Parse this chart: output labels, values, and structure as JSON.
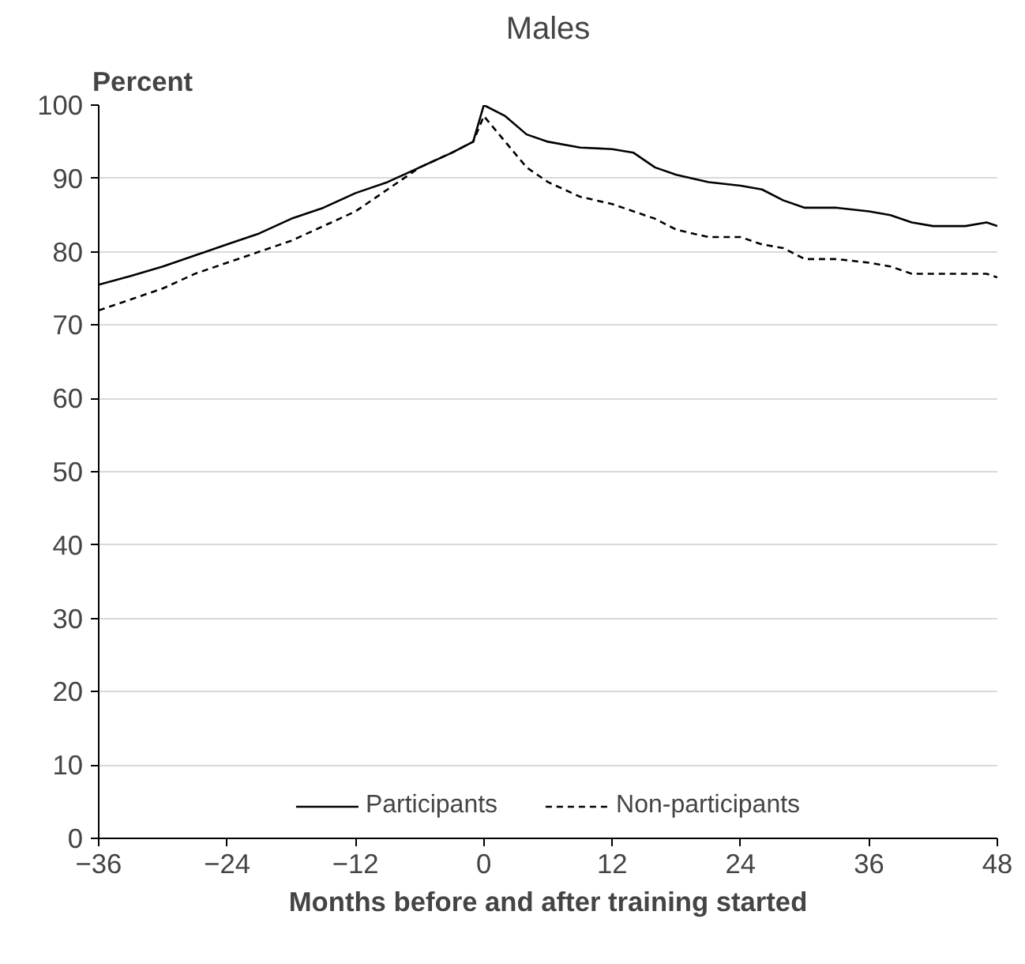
{
  "chart_data": {
    "type": "line",
    "title": "Males",
    "ylabel": "Percent",
    "xlabel": "Months before and after training started",
    "xlim": [
      -36,
      48
    ],
    "xticks": [
      -36,
      -24,
      -12,
      0,
      12,
      24,
      36,
      48
    ],
    "ylim": [
      0,
      100
    ],
    "yticks": [
      0,
      10,
      20,
      30,
      40,
      50,
      60,
      70,
      80,
      90,
      100
    ],
    "grid": "y",
    "legend": "bottom",
    "x": [
      -36,
      -33,
      -30,
      -27,
      -24,
      -21,
      -18,
      -15,
      -12,
      -9,
      -6,
      -3,
      -1,
      0,
      2,
      4,
      6,
      9,
      12,
      14,
      16,
      18,
      21,
      24,
      26,
      28,
      30,
      33,
      36,
      38,
      40,
      42,
      45,
      47,
      48
    ],
    "series": [
      {
        "name": "Participants",
        "color": "#000000",
        "line_style": "solid",
        "values": [
          75.5,
          76.7,
          78,
          79.5,
          81,
          82.5,
          84.5,
          86,
          88,
          89.5,
          91.5,
          93.5,
          95,
          100,
          98.5,
          96,
          95,
          94.2,
          94,
          93.5,
          91.5,
          90.5,
          89.5,
          89,
          88.5,
          87,
          86,
          86,
          85.5,
          85,
          84,
          83.5,
          83.5,
          84,
          83.5
        ]
      },
      {
        "name": "Non-participants",
        "color": "#000000",
        "line_style": "dashed",
        "values": [
          72,
          73.5,
          75,
          77,
          78.5,
          80,
          81.5,
          83.5,
          85.5,
          88.5,
          91.5,
          93.5,
          95,
          98.5,
          95,
          91.5,
          89.5,
          87.5,
          86.5,
          85.5,
          84.5,
          83,
          82,
          82,
          81,
          80.5,
          79,
          79,
          78.5,
          78,
          77,
          77,
          77,
          77,
          76.5
        ]
      }
    ]
  }
}
